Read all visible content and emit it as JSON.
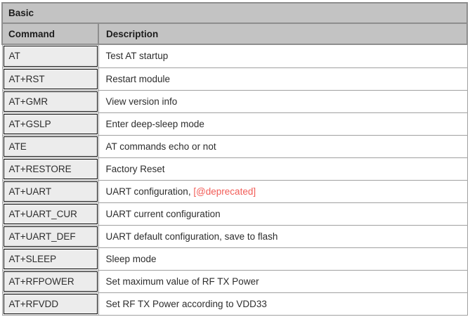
{
  "table": {
    "title": "Basic",
    "columns": [
      "Command",
      "Description"
    ],
    "rows": [
      {
        "command": "AT",
        "description": "Test AT startup"
      },
      {
        "command": "AT+RST",
        "description": "Restart module"
      },
      {
        "command": "AT+GMR",
        "description": "View version info"
      },
      {
        "command": "AT+GSLP",
        "description": "Enter deep-sleep mode"
      },
      {
        "command": "ATE",
        "description": "AT commands echo or not"
      },
      {
        "command": "AT+RESTORE",
        "description": "Factory Reset"
      },
      {
        "command": "AT+UART",
        "description": "UART configuration,  ",
        "deprecated": "[@deprecated]"
      },
      {
        "command": "AT+UART_CUR",
        "description": "UART current configuration"
      },
      {
        "command": "AT+UART_DEF",
        "description": "UART default configuration, save to flash"
      },
      {
        "command": "AT+SLEEP",
        "description": "Sleep mode"
      },
      {
        "command": "AT+RFPOWER",
        "description": "Set maximum value of RF TX Power"
      },
      {
        "command": "AT+RFVDD",
        "description": "Set RF TX Power according to VDD33"
      }
    ],
    "colors": {
      "header_bg": "#c3c3c3",
      "header_border": "#8e8e8e",
      "grid_border": "#a0a0a0",
      "command_bg": "#ececec",
      "command_border": "#0a0a0a",
      "text": "#2d2d2d",
      "deprecated_red": "#f25d58",
      "page_bg": "#ffffff"
    }
  }
}
